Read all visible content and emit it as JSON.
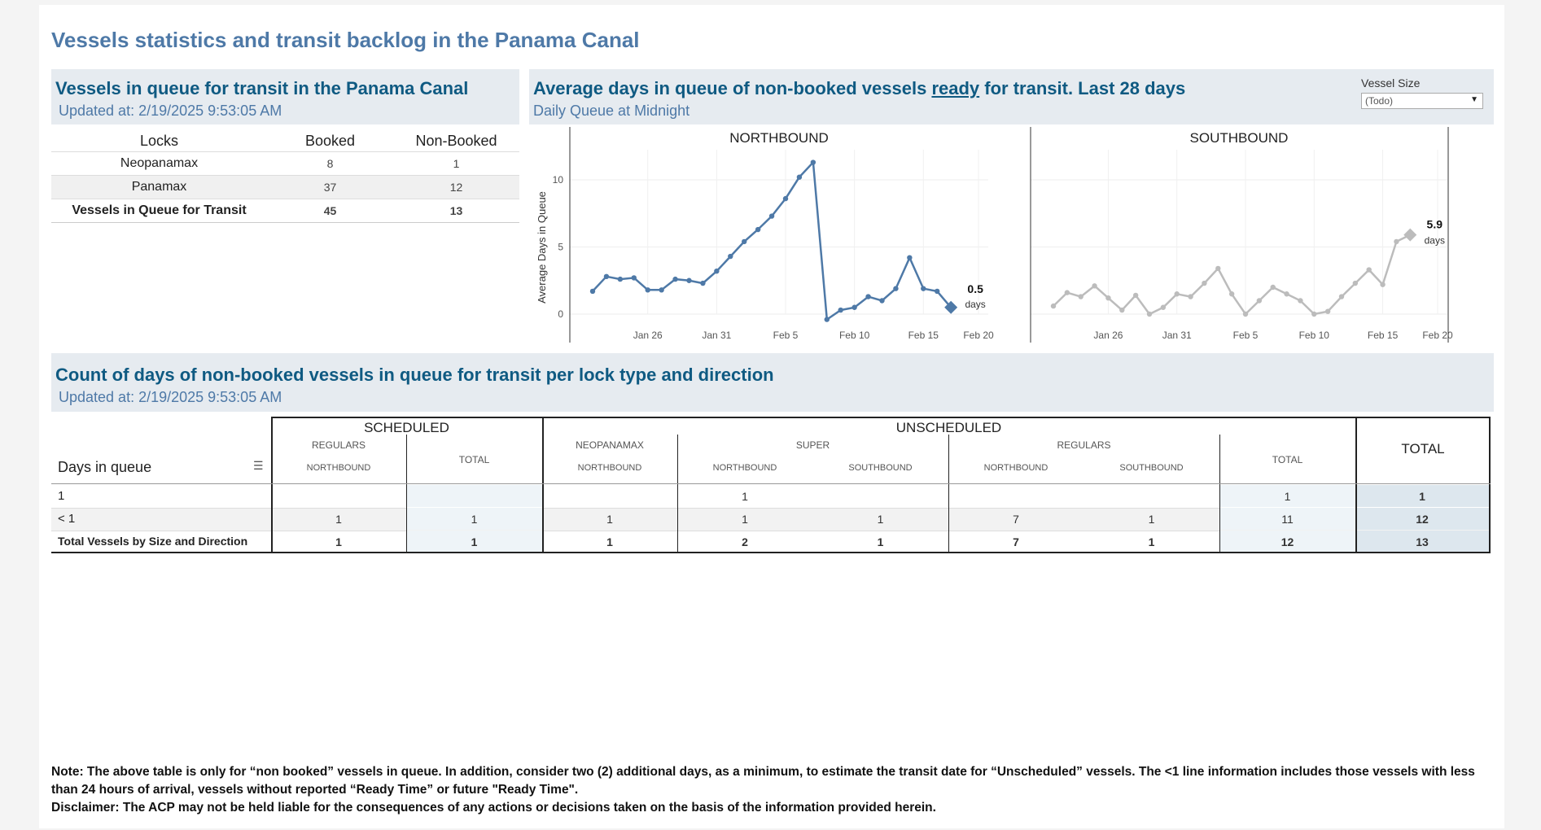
{
  "title": "Vessels statistics and transit backlog in the Panama Canal",
  "queue_panel": {
    "title": "Vessels in queue for transit in the Panama Canal",
    "updated": "Updated at:  2/19/2025 9:53:05 AM",
    "headers": [
      "Locks",
      "Booked",
      "Non-Booked"
    ],
    "rows": [
      {
        "lock": "Neopanamax",
        "booked": "8",
        "non_booked": "1"
      },
      {
        "lock": "Panamax",
        "booked": "37",
        "non_booked": "12"
      },
      {
        "lock": "Vessels in Queue for Transit",
        "booked": "45",
        "non_booked": "13"
      }
    ]
  },
  "avg_panel": {
    "title_pre": "Average days in queue of non-booked vessels ",
    "title_underlined": "ready",
    "title_post": " for transit. Last 28 days",
    "subtitle": "Daily Queue at Midnight",
    "filter_label": "Vessel Size",
    "filter_value": "(Todo)"
  },
  "chart_data": {
    "type": "line",
    "ylabel": "Average Days in Queue",
    "ylim": [
      0,
      12
    ],
    "yticks": [
      "0",
      "5",
      "10"
    ],
    "xticks": [
      "Jan 26",
      "Jan 31",
      "Feb 5",
      "Feb 10",
      "Feb 15",
      "Feb 20"
    ],
    "x": [
      "Jan 22",
      "Jan 23",
      "Jan 24",
      "Jan 25",
      "Jan 26",
      "Jan 27",
      "Jan 28",
      "Jan 29",
      "Jan 30",
      "Jan 31",
      "Feb 1",
      "Feb 2",
      "Feb 3",
      "Feb 4",
      "Feb 5",
      "Feb 6",
      "Feb 7",
      "Feb 8",
      "Feb 9",
      "Feb 10",
      "Feb 11",
      "Feb 12",
      "Feb 13",
      "Feb 14",
      "Feb 15",
      "Feb 16",
      "Feb 17",
      "Feb 18",
      "Feb 19"
    ],
    "panels": [
      {
        "name": "NORTHBOUND",
        "color": "#4e79a7",
        "values": [
          1.7,
          2.8,
          2.6,
          2.7,
          1.8,
          1.8,
          2.6,
          2.5,
          2.3,
          3.2,
          4.3,
          5.4,
          6.3,
          7.3,
          8.6,
          10.2,
          11.3,
          -0.4,
          0.3,
          0.5,
          1.3,
          1.0,
          1.9,
          4.2,
          1.9,
          1.7,
          0.5,
          null,
          null
        ],
        "last_label": "0.5",
        "last_unit": "days",
        "last_index": 26
      },
      {
        "name": "SOUTHBOUND",
        "color": "#bcbcbc",
        "values": [
          0.6,
          1.6,
          1.3,
          2.1,
          1.2,
          0.3,
          1.4,
          0.0,
          0.5,
          1.5,
          1.3,
          2.3,
          3.4,
          1.5,
          0.0,
          1.0,
          2.0,
          1.5,
          1.0,
          0.0,
          0.2,
          1.3,
          2.3,
          3.3,
          2.2,
          5.4,
          5.9,
          null,
          null
        ],
        "last_label": "5.9",
        "last_unit": "days",
        "last_index": 26
      }
    ]
  },
  "count_panel": {
    "title": "Count of days of non-booked vessels in queue for transit per lock type and direction",
    "updated": "Updated at:  2/19/2025 9:53:05 AM",
    "row_header": "Days in queue",
    "group_scheduled": "SCHEDULED",
    "group_unscheduled": "UNSCHEDULED",
    "total_label": "TOTAL",
    "sub_regulars": "REGULARS",
    "sub_neopanamax": "NEOPANAMAX",
    "sub_super": "SUPER",
    "sub_regulars2": "REGULARS",
    "sub_total": "TOTAL",
    "northbound": "NORTHBOUND",
    "southbound": "SOUTHBOUND",
    "rows": [
      {
        "label": "1",
        "cells": [
          "",
          "",
          "",
          "1",
          "",
          "",
          "",
          "1",
          "1"
        ]
      },
      {
        "label": "< 1",
        "cells": [
          "1",
          "1",
          "1",
          "1",
          "1",
          "7",
          "1",
          "11",
          "12"
        ]
      },
      {
        "label": "Total Vessels by Size and Direction",
        "cells": [
          "1",
          "1",
          "1",
          "2",
          "1",
          "7",
          "1",
          "12",
          "13"
        ]
      }
    ]
  },
  "note_line1": "Note:  The above table is only for “non booked” vessels in queue. In addition, consider two (2) additional days, as a minimum, to estimate the transit date for “Unscheduled” vessels.  The <1 line information includes those vessels with less than 24 hours of arrival, vessels without reported “Ready Time” or future \"Ready Time\".",
  "note_line2": "Disclaimer: The ACP may not be held liable for the consequences of any actions or decisions taken on the basis of the information provided herein."
}
